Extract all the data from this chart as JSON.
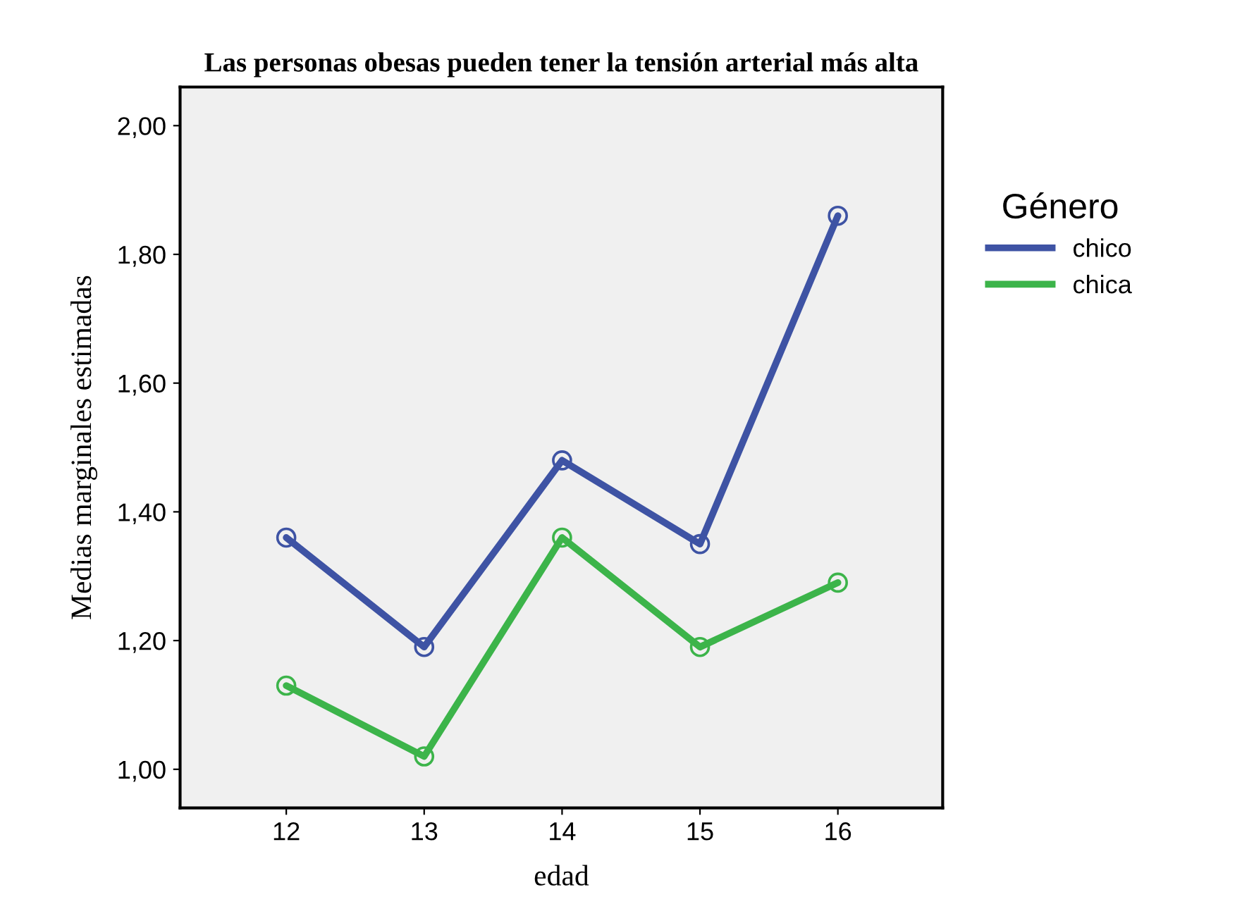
{
  "chart_data": {
    "type": "line",
    "title": "Las personas obesas pueden tener la tensión arterial más alta",
    "xlabel": "edad",
    "ylabel": "Medias marginales estimadas",
    "legend_title": "Género",
    "categories": [
      "12",
      "13",
      "14",
      "15",
      "16"
    ],
    "series": [
      {
        "name": "chico",
        "color": "#3e53a4",
        "values": [
          1.36,
          1.19,
          1.48,
          1.35,
          1.86
        ]
      },
      {
        "name": "chica",
        "color": "#3cb44a",
        "values": [
          1.13,
          1.02,
          1.36,
          1.19,
          1.29
        ]
      }
    ],
    "ylim": [
      0.94,
      2.06
    ],
    "yticks": [
      {
        "value": 1.0,
        "label": "1,00"
      },
      {
        "value": 1.2,
        "label": "1,20"
      },
      {
        "value": 1.4,
        "label": "1,40"
      },
      {
        "value": 1.6,
        "label": "1,60"
      },
      {
        "value": 1.8,
        "label": "1,80"
      },
      {
        "value": 2.0,
        "label": "2,00"
      }
    ],
    "grid": false,
    "legend": "right",
    "marker": "circle",
    "line_style": "solid"
  }
}
